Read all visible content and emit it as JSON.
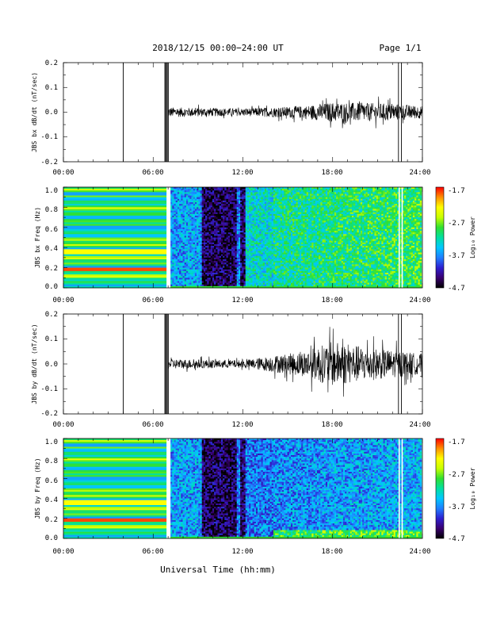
{
  "header": {
    "title": "2018/12/15  00:00−24:00 UT",
    "page": "Page 1/1"
  },
  "x_axis": {
    "label": "Universal Time (hh:mm)",
    "ticks": [
      "00:00",
      "06:00",
      "12:00",
      "18:00",
      "24:00"
    ]
  },
  "colorbar": {
    "ticks": [
      "-1.7",
      "-2.7",
      "-3.7",
      "-4.7"
    ],
    "label": "Log₁₀ Power",
    "colors": [
      "#000000",
      "#3a0070",
      "#2e1fd0",
      "#1f7fff",
      "#00c8ff",
      "#00e0a0",
      "#30e030",
      "#c8ff00",
      "#ffff00",
      "#ff9000",
      "#ff0000"
    ]
  },
  "chart_data": [
    {
      "type": "line",
      "title": "",
      "ylabel": "JBS bx dB/dt (nT/sec)",
      "xlabel": "",
      "xlim": [
        "00:00",
        "24:00"
      ],
      "ylim": [
        -0.2,
        0.2
      ],
      "yticks": [
        "0.2",
        "0.1",
        "0.0",
        "-0.1",
        "-0.2"
      ],
      "spikes_hours": [
        4.0,
        6.8,
        6.9,
        7.0,
        22.4,
        22.6
      ],
      "noise_amplitude": [
        {
          "x": "07:00",
          "y": 0.02
        },
        {
          "x": "12:00",
          "y": 0.015
        },
        {
          "x": "16:00",
          "y": 0.025
        },
        {
          "x": "18:00",
          "y": 0.04
        },
        {
          "x": "22:00",
          "y": 0.035
        },
        {
          "x": "24:00",
          "y": 0.025
        }
      ]
    },
    {
      "type": "heatmap",
      "title": "",
      "ylabel": "JBS bx Freq (Hz)",
      "xlabel": "",
      "xlim": [
        "00:00",
        "24:00"
      ],
      "ylim": [
        0.0,
        1.0
      ],
      "yticks": [
        "1.0",
        "0.8",
        "0.6",
        "0.4",
        "0.2",
        "0.0"
      ],
      "colorscale_range": [
        -4.7,
        -1.7
      ]
    },
    {
      "type": "line",
      "title": "",
      "ylabel": "JBS by dB/dt (nT/sec)",
      "xlabel": "",
      "xlim": [
        "00:00",
        "24:00"
      ],
      "ylim": [
        -0.2,
        0.2
      ],
      "yticks": [
        "0.2",
        "0.1",
        "0.0",
        "-0.1",
        "-0.2"
      ],
      "spikes_hours": [
        4.0,
        6.8,
        6.9,
        7.0,
        22.4,
        22.6
      ],
      "noise_amplitude": [
        {
          "x": "07:00",
          "y": 0.02
        },
        {
          "x": "12:00",
          "y": 0.015
        },
        {
          "x": "16:00",
          "y": 0.05
        },
        {
          "x": "18:00",
          "y": 0.09
        },
        {
          "x": "20:00",
          "y": 0.07
        },
        {
          "x": "24:00",
          "y": 0.04
        }
      ]
    },
    {
      "type": "heatmap",
      "title": "",
      "ylabel": "JBS by Freq (Hz)",
      "xlabel": "Universal Time (hh:mm)",
      "xlim": [
        "00:00",
        "24:00"
      ],
      "ylim": [
        0.0,
        1.0
      ],
      "yticks": [
        "1.0",
        "0.8",
        "0.6",
        "0.4",
        "0.2",
        "0.0"
      ],
      "colorscale_range": [
        -4.7,
        -1.7
      ]
    }
  ]
}
